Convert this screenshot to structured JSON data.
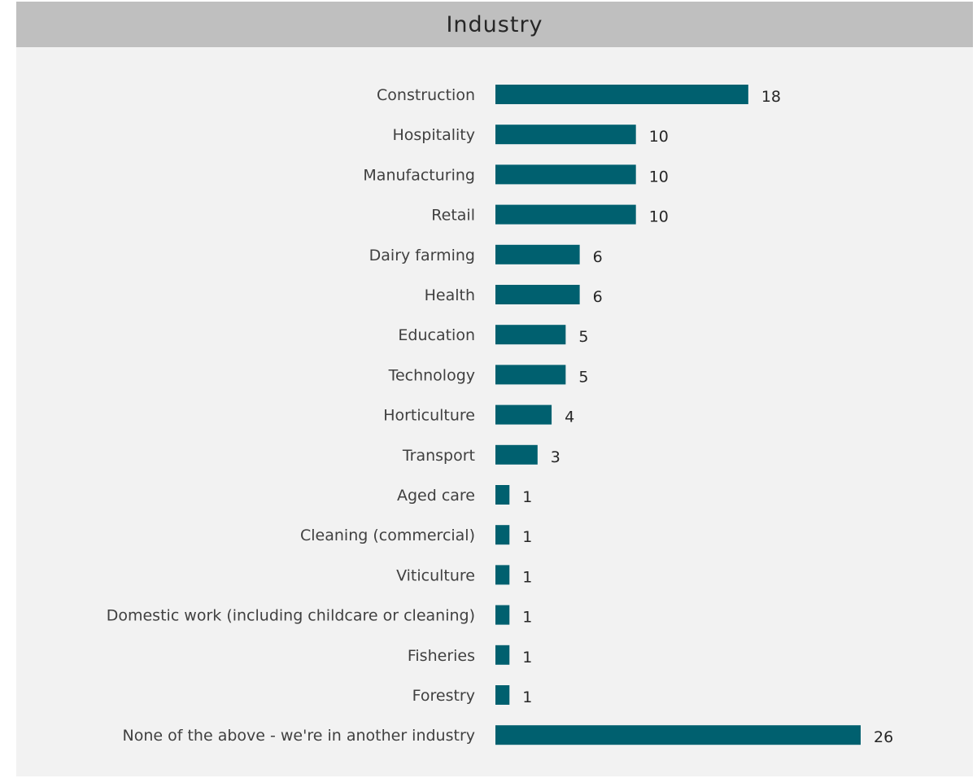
{
  "chart_data": {
    "type": "bar",
    "orientation": "horizontal",
    "title": "Industry",
    "categories": [
      "Construction",
      "Hospitality",
      "Manufacturing",
      "Retail",
      "Dairy farming",
      "Health",
      "Education",
      "Technology",
      "Horticulture",
      "Transport",
      "Aged care",
      "Cleaning (commercial)",
      "Viticulture",
      "Domestic work (including childcare or cleaning)",
      "Fisheries",
      "Forestry",
      "None of the above - we're in another industry"
    ],
    "values": [
      18,
      10,
      10,
      10,
      6,
      6,
      5,
      5,
      4,
      3,
      1,
      1,
      1,
      1,
      1,
      1,
      26
    ],
    "xlim": [
      0,
      26
    ],
    "grid": false,
    "legend": "none",
    "colors": {
      "bar": "#00606f",
      "title_bar": "#bfbfbf",
      "panel": "#f2f2f2"
    }
  }
}
